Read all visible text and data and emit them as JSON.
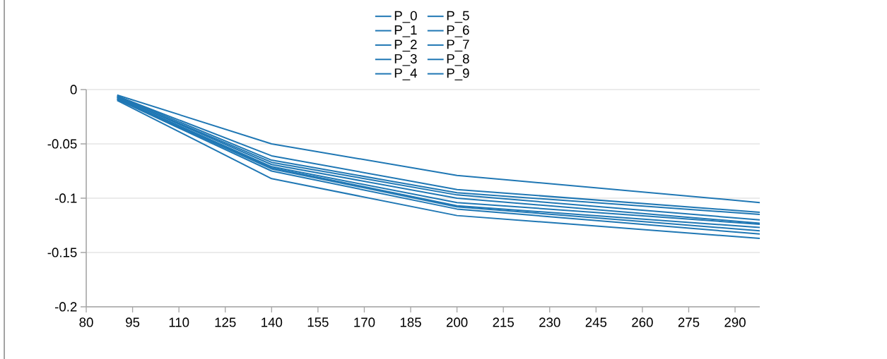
{
  "chart_data": {
    "type": "line",
    "x": [
      90,
      140,
      200,
      298
    ],
    "xlim": [
      80,
      298
    ],
    "ylim": [
      -0.2,
      0
    ],
    "xticks": [
      80,
      95,
      110,
      125,
      140,
      155,
      170,
      185,
      200,
      215,
      230,
      245,
      260,
      275,
      290
    ],
    "yticks": [
      -0.2,
      -0.15,
      -0.1,
      -0.05,
      0
    ],
    "grid": "y",
    "legend": "top",
    "marker": "none",
    "line_style": "solid",
    "series": [
      {
        "name": "P_0",
        "color": "#1f77b4",
        "values": [
          -0.005,
          -0.05,
          -0.079,
          -0.104
        ]
      },
      {
        "name": "P_1",
        "color": "#1f77b4",
        "values": [
          -0.006,
          -0.061,
          -0.092,
          -0.113
        ]
      },
      {
        "name": "P_2",
        "color": "#1f77b4",
        "values": [
          -0.006,
          -0.065,
          -0.095,
          -0.115
        ]
      },
      {
        "name": "P_3",
        "color": "#1f77b4",
        "values": [
          -0.007,
          -0.067,
          -0.097,
          -0.12
        ]
      },
      {
        "name": "P_4",
        "color": "#1f77b4",
        "values": [
          -0.007,
          -0.069,
          -0.1,
          -0.123
        ]
      },
      {
        "name": "P_5",
        "color": "#1f77b4",
        "values": [
          -0.008,
          -0.071,
          -0.104,
          -0.124
        ]
      },
      {
        "name": "P_6",
        "color": "#1f77b4",
        "values": [
          -0.008,
          -0.072,
          -0.107,
          -0.127
        ]
      },
      {
        "name": "P_7",
        "color": "#1f77b4",
        "values": [
          -0.009,
          -0.073,
          -0.108,
          -0.13
        ]
      },
      {
        "name": "P_8",
        "color": "#1f77b4",
        "values": [
          -0.009,
          -0.075,
          -0.11,
          -0.133
        ]
      },
      {
        "name": "P_9",
        "color": "#1f77b4",
        "values": [
          -0.01,
          -0.082,
          -0.116,
          -0.137
        ]
      }
    ]
  }
}
